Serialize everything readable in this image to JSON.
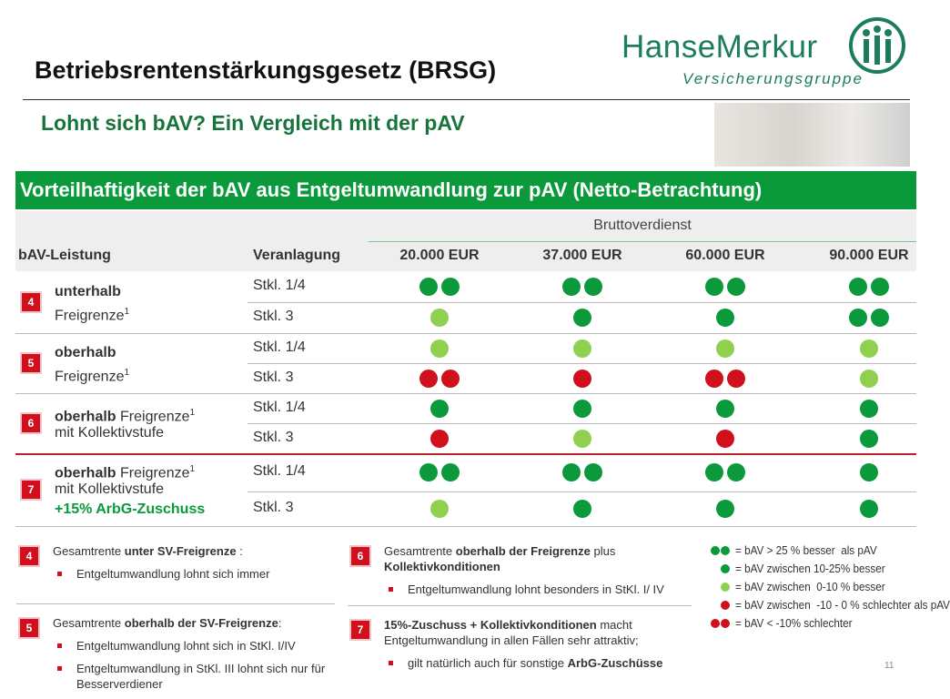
{
  "header": {
    "title": "Betriebsrentenstärkungsgesetz (BRSG)",
    "subtitle": "Lohnt sich bAV? Ein Vergleich mit der pAV"
  },
  "logo": {
    "name": "HanseMerkur",
    "tagline": "Versicherungsgruppe"
  },
  "table": {
    "title": "Vorteilhaftigkeit der bAV aus Entgeltumwandlung zur pAV (Netto-Betrachtung)",
    "group_header": "Bruttoverdienst",
    "columns": [
      "bAV-Leistung",
      "Veranlagung",
      "20.000 EUR",
      "37.000 EUR",
      "60.000 EUR",
      "90.000 EUR"
    ],
    "groups": [
      {
        "number": "4",
        "lines": [
          [
            {
              "text": "unterhalb",
              "style": "bold"
            }
          ],
          [
            {
              "text": "Freigrenze",
              "style": "normal"
            },
            {
              "text": "1",
              "style": "sup"
            }
          ]
        ],
        "rows": [
          {
            "class": "Stkl. 1/4",
            "ratings": [
              0,
              0,
              0,
              0
            ]
          },
          {
            "class": "Stkl. 3",
            "ratings": [
              2,
              1,
              1,
              0
            ]
          }
        ]
      },
      {
        "number": "5",
        "lines": [
          [
            {
              "text": "oberhalb",
              "style": "bold"
            }
          ],
          [
            {
              "text": "Freigrenze",
              "style": "normal"
            },
            {
              "text": "1",
              "style": "sup"
            }
          ]
        ],
        "rows": [
          {
            "class": "Stkl. 1/4",
            "ratings": [
              2,
              2,
              2,
              2
            ]
          },
          {
            "class": "Stkl. 3",
            "ratings": [
              4,
              3,
              4,
              2
            ]
          }
        ]
      },
      {
        "number": "6",
        "lines": [
          [
            {
              "text": "oberhalb",
              "style": "bold"
            },
            {
              "text": " Freigrenze",
              "style": "normal"
            },
            {
              "text": "1",
              "style": "sup"
            }
          ],
          [
            {
              "text": "mit Kollektivstufe",
              "style": "normal"
            }
          ]
        ],
        "rows": [
          {
            "class": "Stkl. 1/4",
            "ratings": [
              1,
              1,
              1,
              1
            ]
          },
          {
            "class": "Stkl. 3",
            "ratings": [
              3,
              2,
              3,
              1
            ]
          }
        ]
      },
      {
        "number": "7",
        "lines": [
          [
            {
              "text": "oberhalb",
              "style": "bold"
            },
            {
              "text": " Freigrenze",
              "style": "normal"
            },
            {
              "text": "1",
              "style": "sup"
            }
          ],
          [
            {
              "text": "mit Kollektivstufe",
              "style": "normal"
            }
          ],
          [
            {
              "text": "+15% ArbG-Zuschuss",
              "style": "green"
            }
          ]
        ],
        "rows": [
          {
            "class": "Stkl. 1/4",
            "ratings": [
              0,
              0,
              0,
              1
            ]
          },
          {
            "class": "Stkl. 3",
            "ratings": [
              2,
              1,
              1,
              1
            ]
          }
        ]
      }
    ]
  },
  "legend": [
    {
      "dots": 2,
      "color": "#0a9a3c",
      "text": "= bAV > 25 % besser  als pAV"
    },
    {
      "dots": 1,
      "color": "#0a9a3c",
      "text": "= bAV zwischen 10-25% besser"
    },
    {
      "dots": 1,
      "color": "#8fd14f",
      "text": "= bAV zwischen  0-10 % besser"
    },
    {
      "dots": 1,
      "color": "#d0101d",
      "text": "= bAV zwischen  -10 - 0 % schlechter als pAV"
    },
    {
      "dots": 2,
      "color": "#d0101d",
      "text": "= bAV < -10% schlechter"
    }
  ],
  "notes": [
    {
      "number": "4",
      "heading": [
        {
          "text": "Gesamtrente ",
          "bold": false
        },
        {
          "text": "unter SV-Freigrenze",
          "bold": true
        },
        {
          "text": " :",
          "bold": false
        }
      ],
      "bullets": [
        [
          {
            "text": "Entgeltumwandlung lohnt sich immer",
            "bold": false
          }
        ]
      ]
    },
    {
      "number": "5",
      "heading": [
        {
          "text": "Gesamtrente ",
          "bold": false
        },
        {
          "text": "oberhalb der SV-Freigrenze",
          "bold": true
        },
        {
          "text": ":",
          "bold": false
        }
      ],
      "bullets": [
        [
          {
            "text": "Entgeltumwandlung lohnt sich in StKl. I/IV",
            "bold": false
          }
        ],
        [
          {
            "text": "Entgeltumwandlung in StKl. III lohnt sich nur für Besserverdiener",
            "bold": false
          }
        ]
      ]
    },
    {
      "number": "6",
      "heading": [
        {
          "text": "Gesamtrente ",
          "bold": false
        },
        {
          "text": "oberhalb der Freigrenze",
          "bold": true
        },
        {
          "text": " plus ",
          "bold": false
        },
        {
          "text": "Kollektivkonditionen",
          "bold": true
        }
      ],
      "bullets": [
        [
          {
            "text": "Entgeltumwandlung lohnt besonders in StKl. I/ IV",
            "bold": false
          }
        ]
      ]
    },
    {
      "number": "7",
      "heading": [
        {
          "text": "15%-Zuschuss + Kollektivkonditionen",
          "bold": true
        },
        {
          "text": " macht Entgeltumwandlung in allen Fällen sehr attraktiv;",
          "bold": false
        }
      ],
      "bullets": [
        [
          {
            "text": "gilt natürlich auch für sonstige ",
            "bold": false
          },
          {
            "text": "ArbG-Zuschüsse",
            "bold": true
          }
        ]
      ]
    }
  ],
  "page_number": "11"
}
